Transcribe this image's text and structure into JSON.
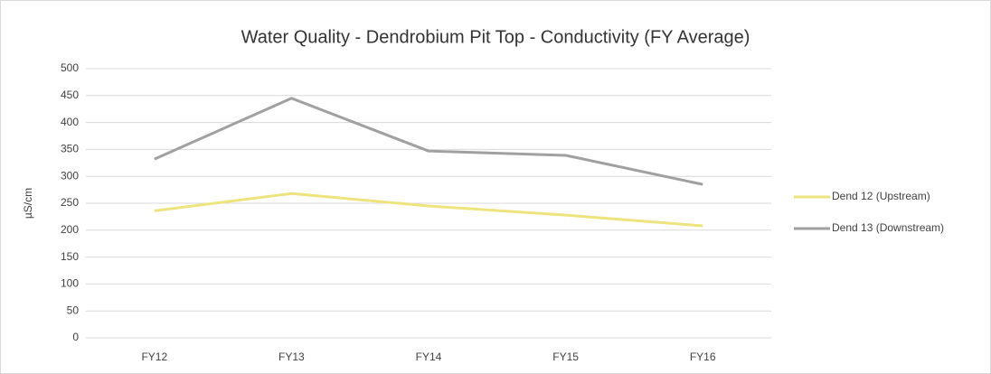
{
  "chart_data": {
    "type": "line",
    "title": "Water Quality - Dendrobium Pit Top - Conductivity (FY Average)",
    "y_label": "µS/cm",
    "categories": [
      "FY12",
      "FY13",
      "FY14",
      "FY15",
      "FY16"
    ],
    "series": [
      {
        "name": "Dend 12 (Upstream)",
        "color": "#eee47e",
        "values": [
          236,
          268,
          245,
          228,
          208
        ]
      },
      {
        "name": "Dend 13 (Downstream)",
        "color": "#a0a0a0",
        "values": [
          332,
          445,
          347,
          339,
          285
        ]
      }
    ],
    "ylim": [
      0,
      500
    ],
    "yticks": [
      0,
      50,
      100,
      150,
      200,
      250,
      300,
      350,
      400,
      450,
      500
    ],
    "grid": true,
    "legend": "right"
  }
}
